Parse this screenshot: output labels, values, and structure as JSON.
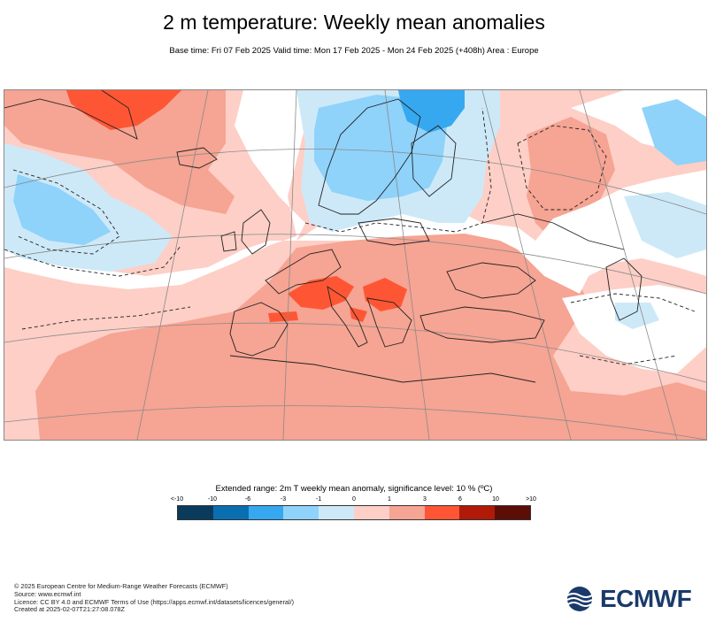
{
  "header": {
    "title": "2 m temperature: Weekly mean anomalies",
    "subtitle": "Base time: Fri 07 Feb 2025 Valid time: Mon 17 Feb 2025 - Mon 24 Feb 2025 (+408h) Area : Europe"
  },
  "map": {
    "region": "Europe",
    "overall_pattern": [
      {
        "area": "Greenland (southeast coast)",
        "anomaly_class": "3 to 6"
      },
      {
        "area": "North Atlantic west",
        "anomaly_class": "-3 to -1"
      },
      {
        "area": "Scandinavia",
        "anomaly_class": "-3 to -1"
      },
      {
        "area": "Northwest Russia",
        "anomaly_class": "-6 to -3"
      },
      {
        "area": "Central Europe / Baltic",
        "anomaly_class": "-1 to 1"
      },
      {
        "area": "Mediterranean and North Africa",
        "anomaly_class": "1 to 3"
      },
      {
        "area": "Alps and Balkans",
        "anomaly_class": "3 to 6"
      },
      {
        "area": "Southern Russia / Caspian",
        "anomaly_class": "1 to 3"
      },
      {
        "area": "Turkey interior",
        "anomaly_class": "-1 to 1"
      }
    ]
  },
  "legend": {
    "title": "Extended range: 2m T weekly mean anomaly, significance level: 10 % (ºC)",
    "ticks": [
      "<-10",
      "-10",
      "-6",
      "-3",
      "-1",
      "0",
      "1",
      "3",
      "6",
      "10",
      ">10"
    ],
    "colors": [
      "#0b3b5c",
      "#0a6fb0",
      "#36a8f0",
      "#8fd2fa",
      "#cde9f8",
      "#fdcfc6",
      "#f6a493",
      "#fe5634",
      "#b11a08",
      "#5c0d05"
    ]
  },
  "footer": {
    "line1": "© 2025 European Centre for Medium-Range Weather Forecasts (ECMWF)",
    "line2": "Source: www.ecmwf.int",
    "line3": "Licence: CC BY 4.0 and ECMWF Terms of Use (https://apps.ecmwf.int/datasets/licences/general/)",
    "line4": "Created at 2025-02-07T21:27:08.078Z"
  },
  "logo": {
    "text": "ECMWF",
    "color": "#1a3a6b"
  }
}
